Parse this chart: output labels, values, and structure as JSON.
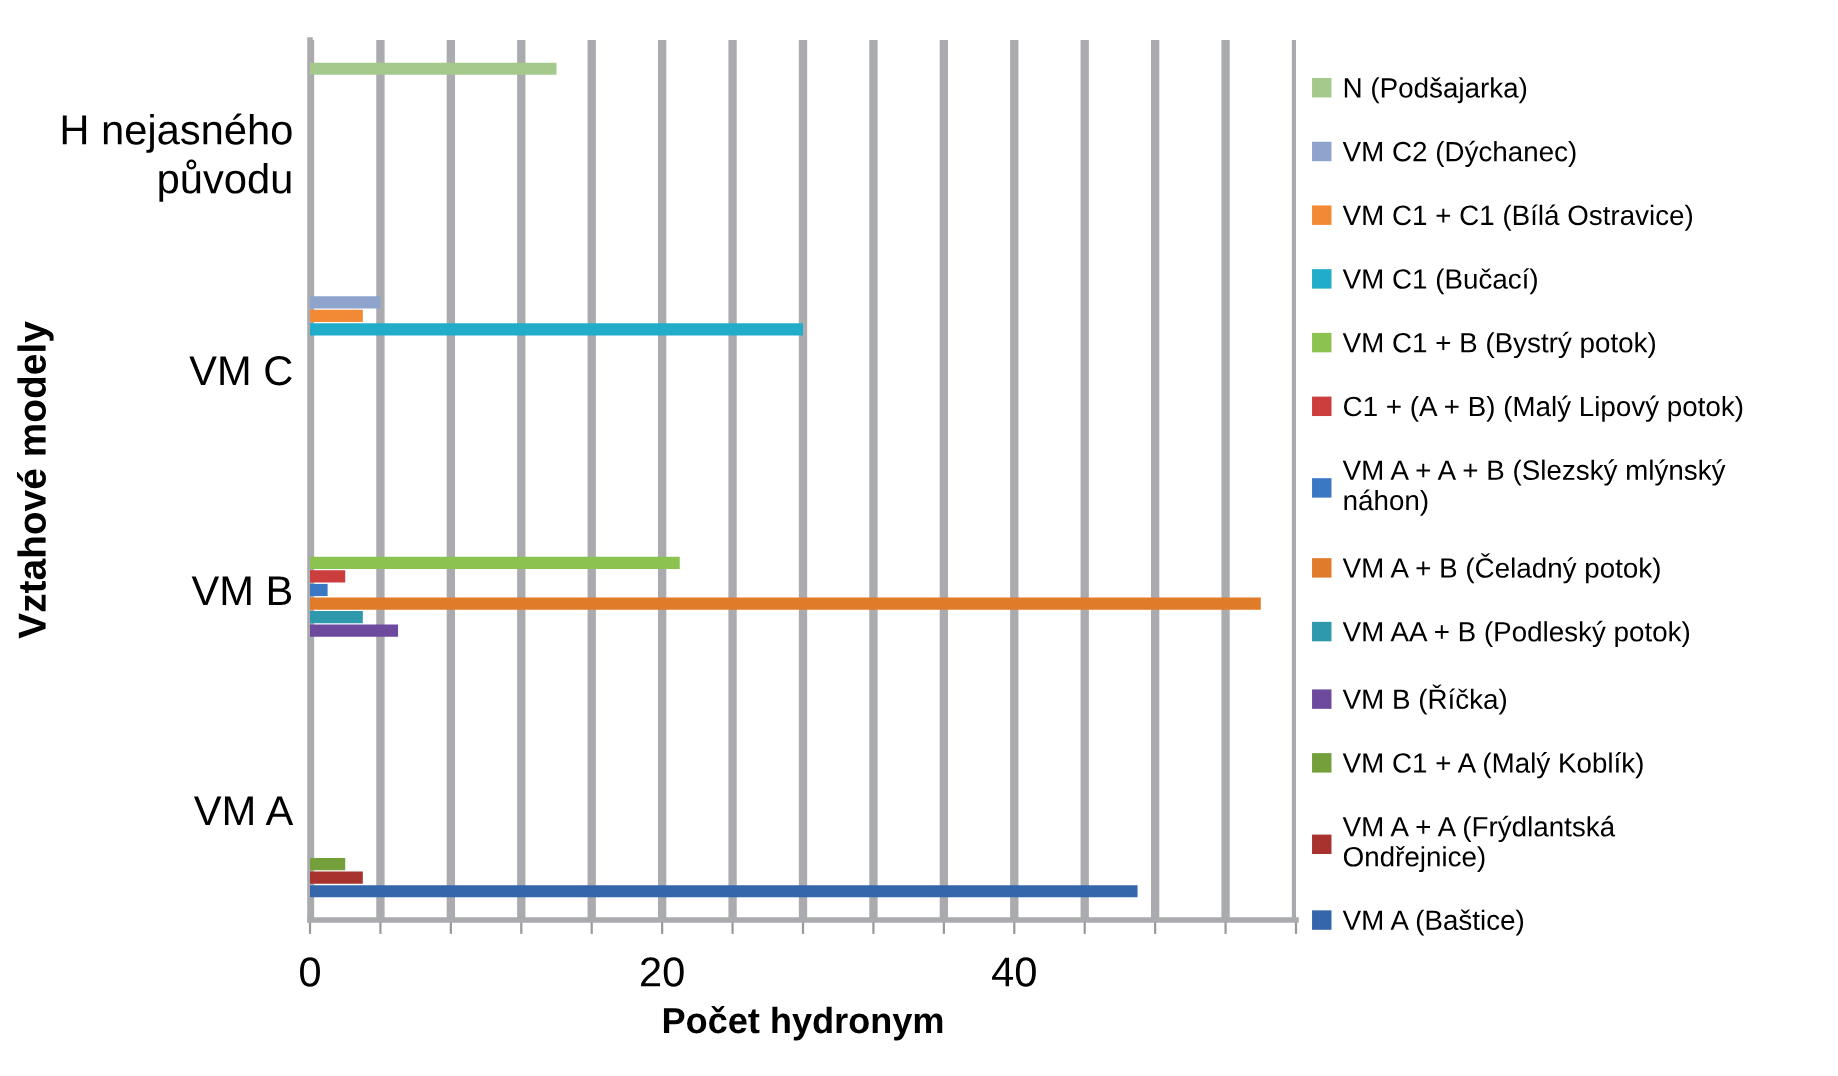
{
  "chart_data": {
    "type": "bar",
    "orientation": "horizontal",
    "categories": [
      "H nejasného\npůvodu",
      "VM C",
      "VM B",
      "VM A"
    ],
    "xlabel": "Počet hydronym",
    "ylabel": "Vztahové modely",
    "xlim": [
      0,
      56
    ],
    "xticks": [
      0,
      {
        "value": 4,
        "label": null
      },
      {
        "value": 8,
        "label": null
      },
      {
        "value": 12,
        "label": null
      },
      {
        "value": 16,
        "label": null
      },
      20,
      {
        "value": 24,
        "label": null
      },
      {
        "value": 28,
        "label": null
      },
      {
        "value": 32,
        "label": null
      },
      {
        "value": 36,
        "label": null
      },
      40,
      {
        "value": 44,
        "label": null
      },
      {
        "value": 48,
        "label": null
      },
      {
        "value": 52,
        "label": null
      },
      {
        "value": 56,
        "label": null
      }
    ],
    "grid": "x",
    "legend": "right",
    "series": [
      {
        "name": "N (Podšajarka)",
        "color": "#a5c98c",
        "values": [
          14,
          null,
          null,
          null
        ]
      },
      {
        "name": "VM C2 (Dýchanec)",
        "color": "#8ea4cc",
        "values": [
          null,
          4,
          null,
          null
        ]
      },
      {
        "name": "VM C1 + C1 (Bílá Ostravice)",
        "color": "#f28a35",
        "values": [
          null,
          3,
          null,
          null
        ]
      },
      {
        "name": "VM C1 (Bučací)",
        "color": "#21adc9",
        "values": [
          null,
          28,
          null,
          null
        ]
      },
      {
        "name": "VM C1 + B (Bystrý potok)",
        "color": "#8cc350",
        "values": [
          null,
          null,
          21,
          null
        ]
      },
      {
        "name": "C1 + (A + B) (Malý Lipový potok)",
        "color": "#cc3d3d",
        "values": [
          null,
          null,
          2,
          null
        ]
      },
      {
        "name": "VM A + A + B (Slezský mlýnský\nnáhon)",
        "color": "#3a78c4",
        "values": [
          null,
          null,
          1,
          null
        ]
      },
      {
        "name": "VM A + B (Čeladný potok)",
        "color": "#e07b2a",
        "values": [
          null,
          null,
          54,
          null
        ]
      },
      {
        "name": "VM AA + B (Podleský potok)",
        "color": "#2e98ad",
        "values": [
          null,
          null,
          3,
          null
        ]
      },
      {
        "name": "VM B (Říčka)",
        "color": "#6e4a9e",
        "values": [
          null,
          null,
          5,
          null
        ]
      },
      {
        "name": "VM C1 + A (Malý Koblík)",
        "color": "#74a03c",
        "values": [
          null,
          null,
          null,
          2
        ]
      },
      {
        "name": "VM A + A (Frýdlantská\nOndřejnice)",
        "color": "#a8322e",
        "values": [
          null,
          null,
          null,
          3
        ]
      },
      {
        "name": "VM A (Baštice)",
        "color": "#3566ab",
        "values": [
          null,
          null,
          null,
          47
        ]
      }
    ]
  }
}
